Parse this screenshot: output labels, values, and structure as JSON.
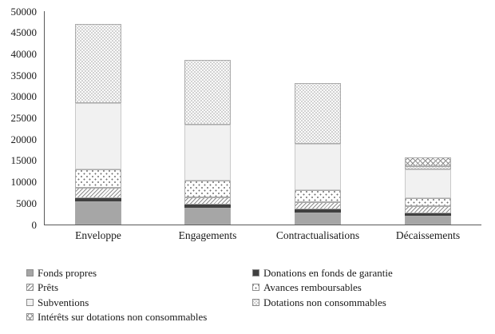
{
  "chart_data": {
    "type": "bar",
    "subtype": "stacked-vertical",
    "title": "",
    "xlabel": "",
    "ylabel": "",
    "grid": false,
    "categories": [
      "Enveloppe",
      "Engagements",
      "Contractualisations",
      "Décaissements"
    ],
    "series": [
      {
        "name": "Fonds propres",
        "pattern": "solid-gray",
        "values": [
          5500,
          4000,
          2900,
          2000
        ]
      },
      {
        "name": "Donations en fonds de garantie",
        "pattern": "solid-dark",
        "values": [
          700,
          600,
          600,
          600
        ]
      },
      {
        "name": "Prêts",
        "pattern": "diagonal-hatch",
        "values": [
          2500,
          1800,
          1700,
          1700
        ]
      },
      {
        "name": "Avances remboursables",
        "pattern": "dots",
        "values": [
          4300,
          3900,
          2800,
          1800
        ]
      },
      {
        "name": "Subventions",
        "pattern": "light-gray",
        "values": [
          15500,
          13200,
          11000,
          6800
        ]
      },
      {
        "name": "Dotations non consommables",
        "pattern": "checker",
        "values": [
          18500,
          15000,
          14200,
          700
        ]
      },
      {
        "name": "Intérêts sur dotations non consommables",
        "pattern": "crosshatch",
        "values": [
          0,
          0,
          0,
          2100
        ]
      }
    ],
    "totals": [
      47000,
      38500,
      33200,
      15700
    ],
    "y_axis": {
      "min": 0,
      "max": 50000,
      "step": 5000,
      "tick_labels": [
        "0",
        "5000",
        "10000",
        "15000",
        "20000",
        "25000",
        "30000",
        "35000",
        "40000",
        "45000",
        "50000"
      ]
    },
    "legend": {
      "position": "bottom",
      "columns": [
        [
          "Fonds propres",
          "Prêts",
          "Subventions",
          "Intérêts sur dotations non consommables"
        ],
        [
          "Donations en fonds de garantie",
          "Avances remboursables",
          "Dotations non consommables"
        ]
      ]
    }
  },
  "colors": {
    "axis": "#595959",
    "text": "#1a1a1a",
    "solid_gray": "#a6a6a6",
    "solid_dark": "#404040",
    "light_gray": "#f1f1f1",
    "pattern_stroke": "#8c8c8c",
    "background": "#ffffff"
  }
}
